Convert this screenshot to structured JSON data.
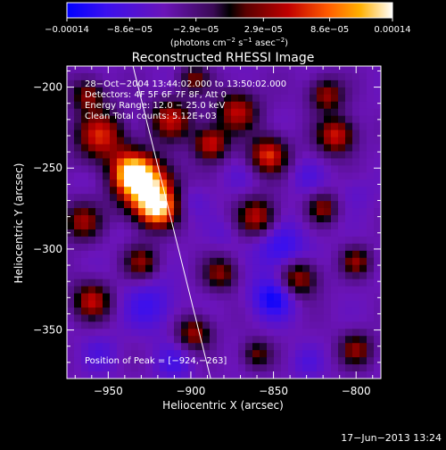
{
  "chart_data": {
    "type": "heatmap",
    "title": "Reconstructed RHESSI Image",
    "xlabel": "Heliocentric X (arcsec)",
    "ylabel": "Heliocentric Y (arcsec)",
    "xlim": [
      -975,
      -785
    ],
    "ylim": [
      -380,
      -187
    ],
    "x_ticks": [
      "−950",
      "−900",
      "−850",
      "−800"
    ],
    "x_tick_values": [
      -950,
      -900,
      -850,
      -800
    ],
    "y_ticks": [
      "−200",
      "−250",
      "−300",
      "−350"
    ],
    "y_tick_values": [
      -200,
      -250,
      -300,
      -350
    ],
    "colorbar": {
      "min": -0.00014,
      "max": 0.00014,
      "tick_labels": [
        "−0.00014",
        "−8.6e−05",
        "−2.9e−05",
        "2.9e−05",
        "8.6e−05",
        "0.00014"
      ],
      "tick_values": [
        -0.00014,
        -8.6e-05,
        -2.9e-05,
        2.9e-05,
        8.6e-05,
        0.00014
      ],
      "units_base": "(photons cm",
      "units_exp1": "−2",
      "units_mid": " s",
      "units_exp2": "−1",
      "units_end": " asec",
      "units_exp3": "−2",
      "units_close": ")"
    },
    "info_lines": [
      "28−Oct−2004 13:44:02.000 to 13:50:02.000",
      "Detectors: 4F 5F 6F 7F 8F, Att 0",
      "Energy Range: 12.0 − 25.0 keV",
      "Clean    Total counts: 5.12E+03"
    ],
    "peak_label": "Position of Peak = [−924,−263]",
    "peak": [
      -924,
      -263
    ],
    "limb_line": [
      [
        -935,
        -187
      ],
      [
        -888,
        -380
      ]
    ],
    "blobs": [
      {
        "x": -926,
        "y": -263,
        "r": 13,
        "v": 0.00014
      },
      {
        "x": -936,
        "y": -252,
        "r": 10,
        "v": 0.00011
      },
      {
        "x": -920,
        "y": -276,
        "r": 9,
        "v": 9e-05
      },
      {
        "x": -955,
        "y": -230,
        "r": 12,
        "v": 8e-05
      },
      {
        "x": -912,
        "y": -220,
        "r": 10,
        "v": 7e-05
      },
      {
        "x": -888,
        "y": -235,
        "r": 8,
        "v": 8e-05
      },
      {
        "x": -872,
        "y": -215,
        "r": 10,
        "v": 7e-05
      },
      {
        "x": -853,
        "y": -242,
        "r": 9,
        "v": 9e-05
      },
      {
        "x": -812,
        "y": -230,
        "r": 9,
        "v": 8e-05
      },
      {
        "x": -818,
        "y": -205,
        "r": 8,
        "v": 6e-05
      },
      {
        "x": -860,
        "y": -280,
        "r": 9,
        "v": 7e-05
      },
      {
        "x": -820,
        "y": -275,
        "r": 7,
        "v": 5e-05
      },
      {
        "x": -966,
        "y": -283,
        "r": 9,
        "v": 6e-05
      },
      {
        "x": -960,
        "y": -332,
        "r": 9,
        "v": 7e-05
      },
      {
        "x": -930,
        "y": -308,
        "r": 8,
        "v": 5e-05
      },
      {
        "x": -882,
        "y": -315,
        "r": 8,
        "v": 5e-05
      },
      {
        "x": -835,
        "y": -318,
        "r": 9,
        "v": 7e-05
      },
      {
        "x": -800,
        "y": -308,
        "r": 7,
        "v": 5e-05
      },
      {
        "x": -898,
        "y": -352,
        "r": 8,
        "v": 6e-05
      },
      {
        "x": -860,
        "y": -365,
        "r": 7,
        "v": 4e-05
      },
      {
        "x": -800,
        "y": -362,
        "r": 8,
        "v": 5e-05
      },
      {
        "x": -962,
        "y": -205,
        "r": 8,
        "v": 5e-05
      },
      {
        "x": -898,
        "y": -195,
        "r": 7,
        "v": 4e-05
      },
      {
        "x": -900,
        "y": -270,
        "r": 8,
        "v": -6e-05
      },
      {
        "x": -870,
        "y": -255,
        "r": 8,
        "v": -5e-05
      },
      {
        "x": -845,
        "y": -300,
        "r": 12,
        "v": -9e-05
      },
      {
        "x": -850,
        "y": -330,
        "r": 10,
        "v": -0.00011
      },
      {
        "x": -925,
        "y": -335,
        "r": 12,
        "v": -8e-05
      },
      {
        "x": -910,
        "y": -370,
        "r": 9,
        "v": -7e-05
      },
      {
        "x": -955,
        "y": -365,
        "r": 9,
        "v": -6e-05
      },
      {
        "x": -945,
        "y": -290,
        "r": 7,
        "v": -4e-05
      },
      {
        "x": -830,
        "y": -255,
        "r": 8,
        "v": -6e-05
      },
      {
        "x": -800,
        "y": -265,
        "r": 8,
        "v": -5e-05
      },
      {
        "x": -880,
        "y": -290,
        "r": 7,
        "v": -5e-05
      },
      {
        "x": -970,
        "y": -258,
        "r": 7,
        "v": -4e-05
      },
      {
        "x": -830,
        "y": -370,
        "r": 8,
        "v": -6e-05
      },
      {
        "x": -935,
        "y": -222,
        "r": 6,
        "v": -4e-05
      }
    ]
  },
  "footer": {
    "timestamp": "17−Jun−2013 13:24"
  }
}
